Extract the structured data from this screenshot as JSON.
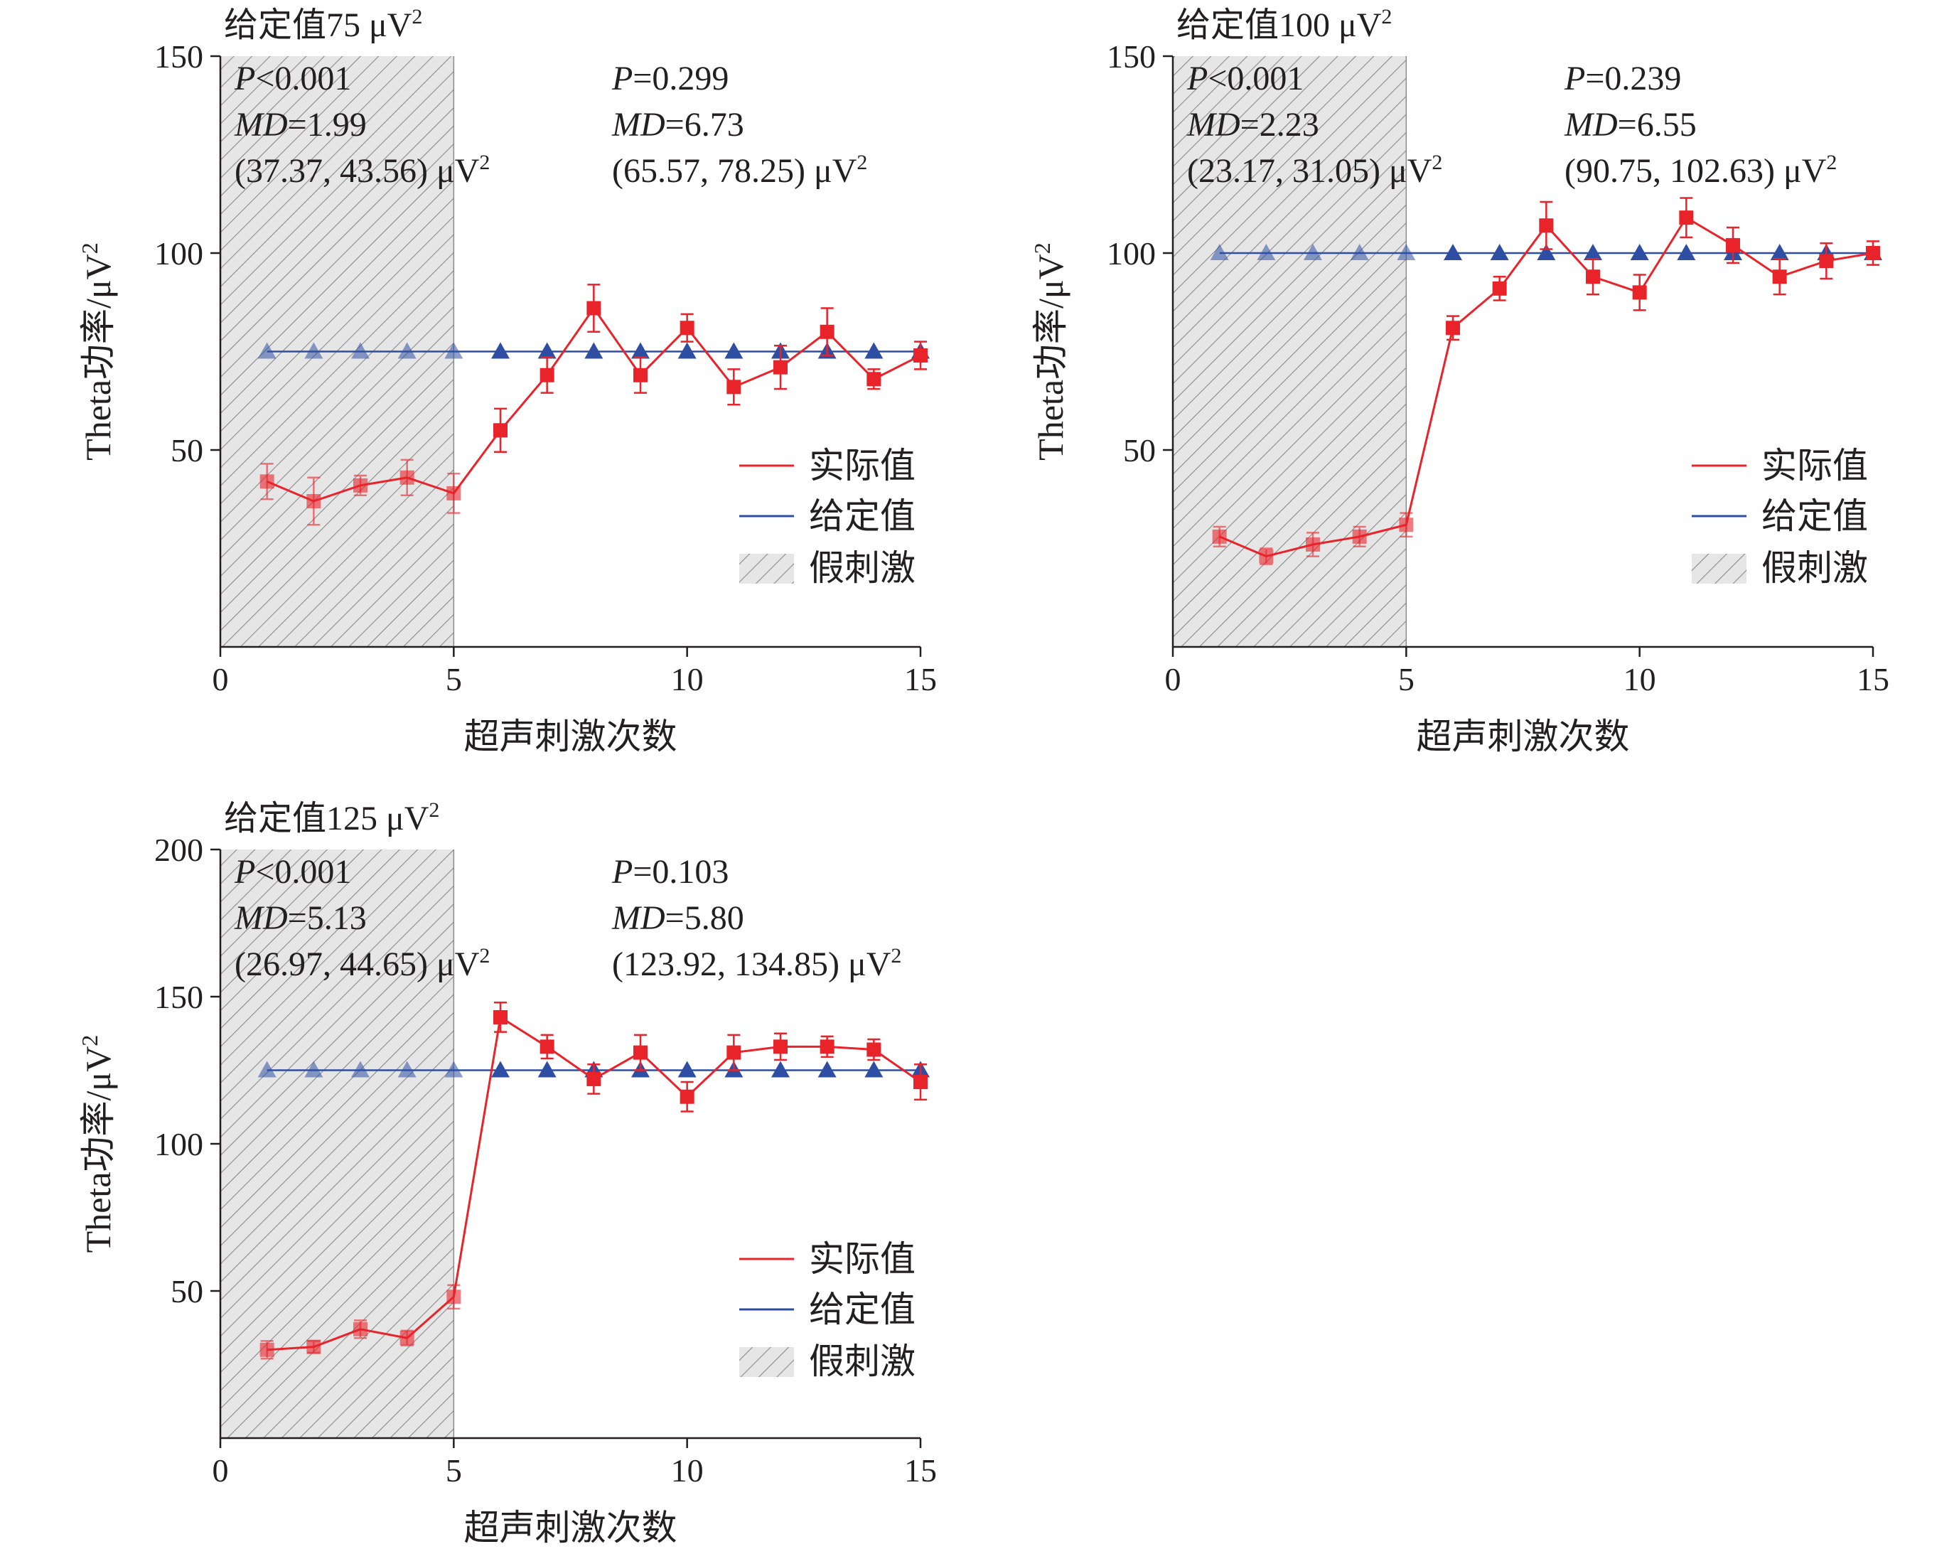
{
  "colors": {
    "actual": "#e8232a",
    "target": "#2e4ea3",
    "sham_fill": "#e6e6e6",
    "sham_hatch": "#8a8a8a",
    "axis": "#231f20"
  },
  "legend": {
    "actual": "实际值",
    "target": "给定值",
    "sham": "假刺激"
  },
  "chart_data": [
    {
      "type": "line",
      "title_prefix": "给定值75 μV",
      "title_sup": "2",
      "xlabel": "超声刺激次数",
      "ylabel_prefix": "Theta功率/μV",
      "ylabel_sup": "2",
      "xlim": [
        0,
        15
      ],
      "ylim": [
        0,
        150
      ],
      "xticks": [
        0,
        5,
        10,
        15
      ],
      "yticks": [
        50,
        100,
        150
      ],
      "sham_range": [
        0,
        5
      ],
      "x": [
        1,
        2,
        3,
        4,
        5,
        6,
        7,
        8,
        9,
        10,
        11,
        12,
        13,
        14,
        15
      ],
      "series": [
        {
          "name": "实际值",
          "values": [
            42,
            37,
            41,
            43,
            39,
            55,
            69,
            86,
            69,
            81,
            66,
            71,
            80,
            68,
            74
          ],
          "errors": [
            4.5,
            6,
            2.5,
            4.5,
            5,
            5.5,
            4.5,
            6,
            4.5,
            3.5,
            4.5,
            5.5,
            6,
            2.5,
            3.5
          ]
        },
        {
          "name": "给定值",
          "values": [
            75,
            75,
            75,
            75,
            75,
            75,
            75,
            75,
            75,
            75,
            75,
            75,
            75,
            75,
            75
          ]
        }
      ],
      "stats_left": {
        "p": "<0.001",
        "md": "=1.99",
        "ci": "(37.37, 43.56) μV",
        "ci_sup": "2"
      },
      "stats_right": {
        "p": "=0.299",
        "md": "=6.73",
        "ci": "(65.57, 78.25) μV",
        "ci_sup": "2"
      }
    },
    {
      "type": "line",
      "title_prefix": "给定值100 μV",
      "title_sup": "2",
      "xlabel": "超声刺激次数",
      "ylabel_prefix": "Theta功率/μV",
      "ylabel_sup": "2",
      "xlim": [
        0,
        15
      ],
      "ylim": [
        0,
        150
      ],
      "xticks": [
        0,
        5,
        10,
        15
      ],
      "yticks": [
        50,
        100,
        150
      ],
      "sham_range": [
        0,
        5
      ],
      "x": [
        1,
        2,
        3,
        4,
        5,
        6,
        7,
        8,
        9,
        10,
        11,
        12,
        13,
        14,
        15
      ],
      "series": [
        {
          "name": "实际值",
          "values": [
            28,
            23,
            26,
            28,
            31,
            81,
            91,
            107,
            94,
            90,
            109,
            102,
            94,
            98,
            100
          ],
          "errors": [
            2.5,
            2,
            3,
            2.5,
            3,
            3,
            3,
            6,
            4.5,
            4.5,
            5,
            4.5,
            4.5,
            4.5,
            3
          ]
        },
        {
          "name": "给定值",
          "values": [
            100,
            100,
            100,
            100,
            100,
            100,
            100,
            100,
            100,
            100,
            100,
            100,
            100,
            100,
            100
          ]
        }
      ],
      "stats_left": {
        "p": "<0.001",
        "md": "=2.23",
        "ci": "(23.17, 31.05) μV",
        "ci_sup": "2"
      },
      "stats_right": {
        "p": "=0.239",
        "md": "=6.55",
        "ci": "(90.75, 102.63) μV",
        "ci_sup": "2"
      }
    },
    {
      "type": "line",
      "title_prefix": "给定值125 μV",
      "title_sup": "2",
      "xlabel": "超声刺激次数",
      "ylabel_prefix": "Theta功率/μV",
      "ylabel_sup": "2",
      "xlim": [
        0,
        15
      ],
      "ylim": [
        0,
        200
      ],
      "xticks": [
        0,
        5,
        10,
        15
      ],
      "yticks": [
        50,
        100,
        150,
        200
      ],
      "sham_range": [
        0,
        5
      ],
      "x": [
        1,
        2,
        3,
        4,
        5,
        6,
        7,
        8,
        9,
        10,
        11,
        12,
        13,
        14,
        15
      ],
      "series": [
        {
          "name": "实际值",
          "values": [
            30,
            31,
            37,
            34,
            48,
            143,
            133,
            122,
            131,
            116,
            131,
            133,
            133,
            132,
            121
          ],
          "errors": [
            3,
            2,
            3,
            2.5,
            4,
            5,
            4,
            5,
            6,
            5,
            6,
            4.5,
            3.5,
            3.5,
            6
          ]
        },
        {
          "name": "给定值",
          "values": [
            125,
            125,
            125,
            125,
            125,
            125,
            125,
            125,
            125,
            125,
            125,
            125,
            125,
            125,
            125
          ]
        }
      ],
      "stats_left": {
        "p": "<0.001",
        "md": "=5.13",
        "ci": "(26.97, 44.65) μV",
        "ci_sup": "2"
      },
      "stats_right": {
        "p": "=0.103",
        "md": "=5.80",
        "ci": "(123.92, 134.85) μV",
        "ci_sup": "2"
      }
    }
  ]
}
